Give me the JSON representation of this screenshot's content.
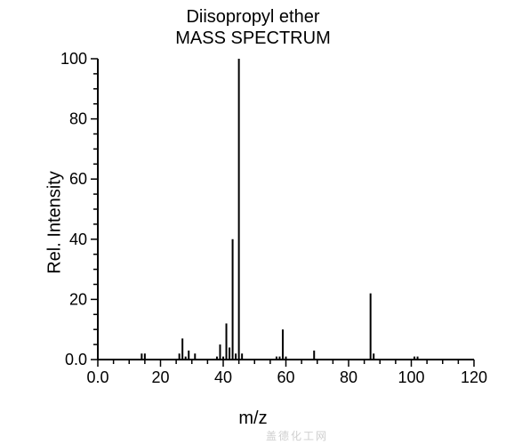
{
  "chart": {
    "type": "mass-spectrum",
    "title_line1": "Diisopropyl ether",
    "title_line2": "MASS SPECTRUM",
    "xlabel": "m/z",
    "ylabel": "Rel. Intensity",
    "title_fontsize": 20,
    "label_fontsize": 20,
    "tick_fontsize": 18,
    "xlim": [
      0,
      120
    ],
    "ylim": [
      0,
      100
    ],
    "xtick_step": 20,
    "ytick_step": 20,
    "xticks": [
      "0.0",
      "20",
      "40",
      "60",
      "80",
      "100",
      "120"
    ],
    "yticks": [
      "0.0",
      "20",
      "40",
      "60",
      "80",
      "100"
    ],
    "background_color": "#ffffff",
    "axis_color": "#000000",
    "line_color": "#000000",
    "axis_linewidth": 2,
    "peak_linewidth": 2,
    "major_tick_len": 8,
    "minor_tick_len": 5,
    "x_minor_interval": 5,
    "y_minor_interval": 5,
    "peaks": [
      {
        "mz": 14,
        "intensity": 2
      },
      {
        "mz": 15,
        "intensity": 2
      },
      {
        "mz": 26,
        "intensity": 2
      },
      {
        "mz": 27,
        "intensity": 7
      },
      {
        "mz": 28,
        "intensity": 1
      },
      {
        "mz": 29,
        "intensity": 3
      },
      {
        "mz": 31,
        "intensity": 2
      },
      {
        "mz": 38,
        "intensity": 1
      },
      {
        "mz": 39,
        "intensity": 5
      },
      {
        "mz": 40,
        "intensity": 1
      },
      {
        "mz": 41,
        "intensity": 12
      },
      {
        "mz": 42,
        "intensity": 4
      },
      {
        "mz": 43,
        "intensity": 40
      },
      {
        "mz": 44,
        "intensity": 2
      },
      {
        "mz": 45,
        "intensity": 100
      },
      {
        "mz": 46,
        "intensity": 2
      },
      {
        "mz": 57,
        "intensity": 1
      },
      {
        "mz": 58,
        "intensity": 1
      },
      {
        "mz": 59,
        "intensity": 10
      },
      {
        "mz": 60,
        "intensity": 1
      },
      {
        "mz": 69,
        "intensity": 3
      },
      {
        "mz": 87,
        "intensity": 22
      },
      {
        "mz": 88,
        "intensity": 2
      },
      {
        "mz": 101,
        "intensity": 1
      },
      {
        "mz": 102,
        "intensity": 1
      }
    ],
    "watermark": "盖德化工网"
  }
}
